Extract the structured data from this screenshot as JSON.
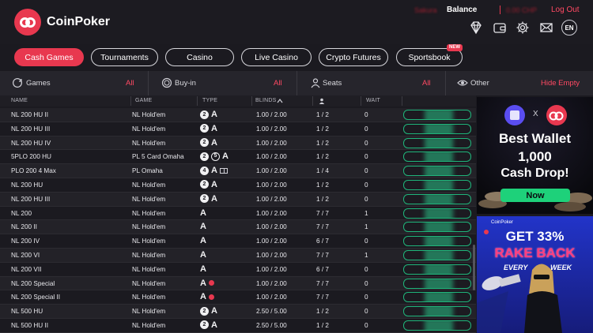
{
  "header": {
    "brand": "CoinPoker",
    "username": "Sakura",
    "balance_label": "Balance",
    "balance_value": "0.00 CHP",
    "logout": "Log Out",
    "lang": "EN",
    "icons": [
      "diamond-icon",
      "wallet-icon",
      "settings-icon",
      "mail-icon"
    ]
  },
  "tabs": [
    {
      "label": "Cash Games",
      "active": true
    },
    {
      "label": "Tournaments",
      "active": false
    },
    {
      "label": "Casino",
      "active": false
    },
    {
      "label": "Live Casino",
      "active": false
    },
    {
      "label": "Crypto Futures",
      "active": false
    },
    {
      "label": "Sportsbook",
      "active": false,
      "badge": "NEW"
    }
  ],
  "filters": [
    {
      "label": "Games",
      "value": "All",
      "icon": "games-icon"
    },
    {
      "label": "Buy-in",
      "value": "All",
      "icon": "coin-icon"
    },
    {
      "label": "Seats",
      "value": "All",
      "icon": "user-icon"
    },
    {
      "label": "Other",
      "value": "Hide Empty",
      "icon": "eye-icon"
    }
  ],
  "table": {
    "columns": [
      "NAME",
      "GAME",
      "TYPE",
      "BLINDS",
      "",
      "WAIT"
    ],
    "rows": [
      {
        "name": "NL   200 HU II",
        "game": "NL   Hold'em",
        "type": [
          "2",
          "A"
        ],
        "blinds": "1.00 /   2.00",
        "seats": "1 / 2",
        "wait": "0"
      },
      {
        "name": "NL   200 HU III",
        "game": "NL   Hold'em",
        "type": [
          "2",
          "A"
        ],
        "blinds": "1.00 /   2.00",
        "seats": "1 / 2",
        "wait": "0"
      },
      {
        "name": "NL   200 HU IV",
        "game": "NL   Hold'em",
        "type": [
          "2",
          "A"
        ],
        "blinds": "1.00 /   2.00",
        "seats": "1 / 2",
        "wait": "0"
      },
      {
        "name": "5PLO   200 HU",
        "game": "PL   5 Card Omaha",
        "type": [
          "2",
          "5",
          "A"
        ],
        "blinds": "1.00 /   2.00",
        "seats": "1 / 2",
        "wait": "0"
      },
      {
        "name": "PLO   200 4 Max",
        "game": "PL   Omaha",
        "type": [
          "4",
          "A",
          "cards"
        ],
        "blinds": "1.00 /   2.00",
        "seats": "1 / 4",
        "wait": "0"
      },
      {
        "name": "NL   200 HU",
        "game": "NL   Hold'em",
        "type": [
          "2",
          "A"
        ],
        "blinds": "1.00 /   2.00",
        "seats": "1 / 2",
        "wait": "0"
      },
      {
        "name": "NL   200 HU III",
        "game": "NL   Hold'em",
        "type": [
          "2",
          "A"
        ],
        "blinds": "1.00 /   2.00",
        "seats": "1 / 2",
        "wait": "0"
      },
      {
        "name": "NL   200",
        "game": "NL   Hold'em",
        "type": [
          "A"
        ],
        "blinds": "1.00 /   2.00",
        "seats": "7 / 7",
        "wait": "1"
      },
      {
        "name": "NL   200 II",
        "game": "NL   Hold'em",
        "type": [
          "A"
        ],
        "blinds": "1.00 /   2.00",
        "seats": "7 / 7",
        "wait": "1"
      },
      {
        "name": "NL   200 IV",
        "game": "NL   Hold'em",
        "type": [
          "A"
        ],
        "blinds": "1.00 /   2.00",
        "seats": "6 / 7",
        "wait": "0"
      },
      {
        "name": "NL   200 VI",
        "game": "NL   Hold'em",
        "type": [
          "A"
        ],
        "blinds": "1.00 /   2.00",
        "seats": "7 / 7",
        "wait": "1"
      },
      {
        "name": "NL   200 VII",
        "game": "NL   Hold'em",
        "type": [
          "A"
        ],
        "blinds": "1.00 /   2.00",
        "seats": "6 / 7",
        "wait": "0"
      },
      {
        "name": "NL   200 Special",
        "game": "NL   Hold'em",
        "type": [
          "A",
          "dot"
        ],
        "blinds": "1.00 /   2.00",
        "seats": "7 / 7",
        "wait": "0"
      },
      {
        "name": "NL   200 Special II",
        "game": "NL   Hold'em",
        "type": [
          "A",
          "dot"
        ],
        "blinds": "1.00 /   2.00",
        "seats": "7 / 7",
        "wait": "0"
      },
      {
        "name": "NL   500 HU",
        "game": "NL   Hold'em",
        "type": [
          "2",
          "A"
        ],
        "blinds": "2.50 /   5.00",
        "seats": "1 / 2",
        "wait": "0"
      },
      {
        "name": "NL   500 HU II",
        "game": "NL   Hold'em",
        "type": [
          "2",
          "A"
        ],
        "blinds": "2.50 /   5.00",
        "seats": "1 / 2",
        "wait": "0"
      }
    ]
  },
  "ads": {
    "ad1": {
      "x": "X",
      "headline": "Best Wallet",
      "amount": "1,000",
      "sub": "Cash Drop!",
      "cta": "Now"
    },
    "ad2": {
      "brand": "CoinPoker",
      "line1": "GET 33%",
      "line2": "RAKE BACK",
      "line3": "EVERY",
      "line4": "WEEK"
    }
  },
  "colors": {
    "accent": "#e8384f",
    "join_border": "#1fb57a",
    "link": "#ff4963"
  }
}
